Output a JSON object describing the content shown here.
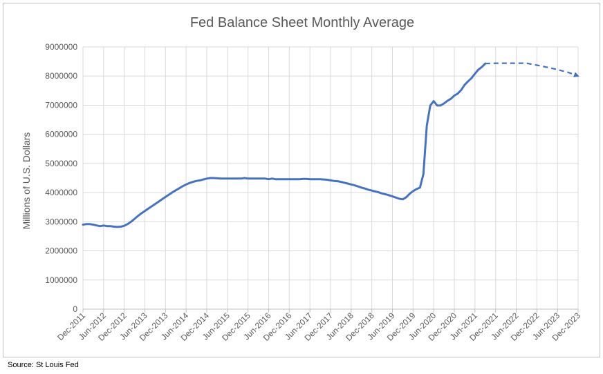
{
  "source_note": "Source: St Louis Fed",
  "colors": {
    "line": "#4472c4",
    "grid": "#d9d9d9",
    "axis": "#bfbfbf",
    "text": "#595959"
  },
  "chart_data": {
    "type": "line",
    "title": "Fed Balance Sheet Monthly Average",
    "ylabel": "Millions of U.S. Dollars",
    "xlabel": "",
    "ylim": [
      0,
      9000000
    ],
    "yticks": [
      0,
      1000000,
      2000000,
      3000000,
      4000000,
      5000000,
      6000000,
      7000000,
      8000000,
      9000000
    ],
    "ytick_labels": [
      "0",
      "1000000",
      "2000000",
      "3000000",
      "4000000",
      "5000000",
      "6000000",
      "7000000",
      "8000000",
      "9000000"
    ],
    "x_categories": [
      "Dec-2011",
      "Jun-2012",
      "Dec-2012",
      "Jun-2013",
      "Dec-2013",
      "Jun-2014",
      "Dec-2014",
      "Jun-2015",
      "Dec-2015",
      "Jun-2016",
      "Dec-2016",
      "Jun-2017",
      "Dec-2017",
      "Jun-2018",
      "Dec-2018",
      "Jun-2019",
      "Dec-2019",
      "Jun-2020",
      "Dec-2020",
      "Jun-2021",
      "Dec-2021",
      "Jun-2022",
      "Dec-2022",
      "Jun-2023",
      "Dec-2023"
    ],
    "grid": true,
    "legend": "none",
    "series": [
      {
        "style": "solid",
        "points": [
          [
            "2011-12",
            2900000
          ],
          [
            "2012-01",
            2920000
          ],
          [
            "2012-02",
            2920000
          ],
          [
            "2012-03",
            2900000
          ],
          [
            "2012-04",
            2870000
          ],
          [
            "2012-05",
            2850000
          ],
          [
            "2012-06",
            2870000
          ],
          [
            "2012-07",
            2850000
          ],
          [
            "2012-08",
            2850000
          ],
          [
            "2012-09",
            2830000
          ],
          [
            "2012-10",
            2820000
          ],
          [
            "2012-11",
            2830000
          ],
          [
            "2012-12",
            2860000
          ],
          [
            "2013-01",
            2920000
          ],
          [
            "2013-02",
            3000000
          ],
          [
            "2013-03",
            3100000
          ],
          [
            "2013-04",
            3200000
          ],
          [
            "2013-05",
            3290000
          ],
          [
            "2013-06",
            3370000
          ],
          [
            "2013-07",
            3450000
          ],
          [
            "2013-08",
            3530000
          ],
          [
            "2013-09",
            3610000
          ],
          [
            "2013-10",
            3690000
          ],
          [
            "2013-11",
            3770000
          ],
          [
            "2013-12",
            3850000
          ],
          [
            "2014-01",
            3930000
          ],
          [
            "2014-02",
            4010000
          ],
          [
            "2014-03",
            4080000
          ],
          [
            "2014-04",
            4150000
          ],
          [
            "2014-05",
            4220000
          ],
          [
            "2014-06",
            4280000
          ],
          [
            "2014-07",
            4330000
          ],
          [
            "2014-08",
            4370000
          ],
          [
            "2014-09",
            4400000
          ],
          [
            "2014-10",
            4420000
          ],
          [
            "2014-11",
            4450000
          ],
          [
            "2014-12",
            4480000
          ],
          [
            "2015-01",
            4500000
          ],
          [
            "2015-02",
            4500000
          ],
          [
            "2015-03",
            4490000
          ],
          [
            "2015-04",
            4480000
          ],
          [
            "2015-05",
            4480000
          ],
          [
            "2015-06",
            4480000
          ],
          [
            "2015-07",
            4480000
          ],
          [
            "2015-08",
            4480000
          ],
          [
            "2015-09",
            4480000
          ],
          [
            "2015-10",
            4480000
          ],
          [
            "2015-11",
            4500000
          ],
          [
            "2015-12",
            4480000
          ],
          [
            "2016-01",
            4480000
          ],
          [
            "2016-02",
            4480000
          ],
          [
            "2016-03",
            4480000
          ],
          [
            "2016-04",
            4480000
          ],
          [
            "2016-05",
            4480000
          ],
          [
            "2016-06",
            4460000
          ],
          [
            "2016-07",
            4480000
          ],
          [
            "2016-08",
            4460000
          ],
          [
            "2016-09",
            4460000
          ],
          [
            "2016-10",
            4460000
          ],
          [
            "2016-11",
            4460000
          ],
          [
            "2016-12",
            4460000
          ],
          [
            "2017-01",
            4460000
          ],
          [
            "2017-02",
            4460000
          ],
          [
            "2017-03",
            4460000
          ],
          [
            "2017-04",
            4470000
          ],
          [
            "2017-05",
            4470000
          ],
          [
            "2017-06",
            4460000
          ],
          [
            "2017-07",
            4460000
          ],
          [
            "2017-08",
            4460000
          ],
          [
            "2017-09",
            4460000
          ],
          [
            "2017-10",
            4450000
          ],
          [
            "2017-11",
            4440000
          ],
          [
            "2017-12",
            4420000
          ],
          [
            "2018-01",
            4400000
          ],
          [
            "2018-02",
            4390000
          ],
          [
            "2018-03",
            4370000
          ],
          [
            "2018-04",
            4340000
          ],
          [
            "2018-05",
            4310000
          ],
          [
            "2018-06",
            4280000
          ],
          [
            "2018-07",
            4250000
          ],
          [
            "2018-08",
            4210000
          ],
          [
            "2018-09",
            4170000
          ],
          [
            "2018-10",
            4140000
          ],
          [
            "2018-11",
            4100000
          ],
          [
            "2018-12",
            4070000
          ],
          [
            "2019-01",
            4040000
          ],
          [
            "2019-02",
            4010000
          ],
          [
            "2019-03",
            3970000
          ],
          [
            "2019-04",
            3940000
          ],
          [
            "2019-05",
            3910000
          ],
          [
            "2019-06",
            3870000
          ],
          [
            "2019-07",
            3830000
          ],
          [
            "2019-08",
            3790000
          ],
          [
            "2019-09",
            3770000
          ],
          [
            "2019-10",
            3840000
          ],
          [
            "2019-11",
            3960000
          ],
          [
            "2019-12",
            4050000
          ],
          [
            "2020-01",
            4120000
          ],
          [
            "2020-02",
            4170000
          ],
          [
            "2020-03",
            4640000
          ],
          [
            "2020-04",
            6300000
          ],
          [
            "2020-05",
            6990000
          ],
          [
            "2020-06",
            7140000
          ],
          [
            "2020-07",
            6990000
          ],
          [
            "2020-08",
            6990000
          ],
          [
            "2020-09",
            7060000
          ],
          [
            "2020-10",
            7150000
          ],
          [
            "2020-11",
            7220000
          ],
          [
            "2020-12",
            7330000
          ],
          [
            "2021-01",
            7400000
          ],
          [
            "2021-02",
            7520000
          ],
          [
            "2021-03",
            7700000
          ],
          [
            "2021-04",
            7820000
          ],
          [
            "2021-05",
            7930000
          ],
          [
            "2021-06",
            8080000
          ],
          [
            "2021-07",
            8220000
          ],
          [
            "2021-08",
            8310000
          ],
          [
            "2021-09",
            8430000
          ]
        ]
      },
      {
        "style": "dashed",
        "points": [
          [
            "2021-09",
            8430000
          ],
          [
            "2022-01",
            8440000
          ],
          [
            "2022-05",
            8440000
          ],
          [
            "2022-09",
            8440000
          ],
          [
            "2023-01",
            8350000
          ],
          [
            "2023-05",
            8250000
          ],
          [
            "2023-09",
            8130000
          ],
          [
            "2023-12",
            8000000
          ]
        ],
        "end_marker": "arrow"
      }
    ]
  }
}
